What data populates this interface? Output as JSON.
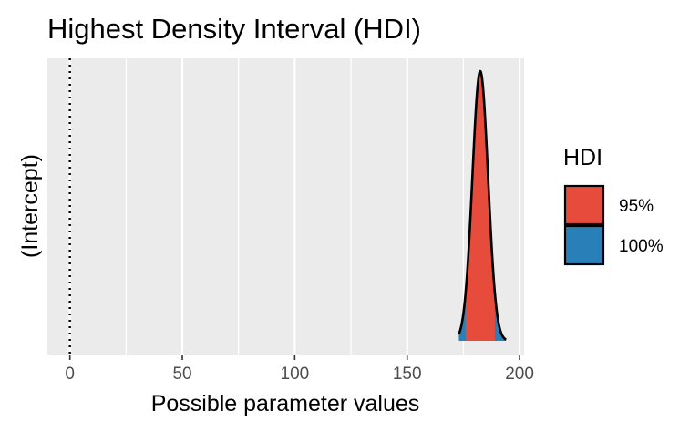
{
  "chart_data": {
    "type": "area",
    "title": "Highest Density Interval (HDI)",
    "xlabel": "Possible parameter values",
    "ylabel": "(Intercept)",
    "xlim": [
      -10,
      202
    ],
    "x_ticks": [
      0,
      50,
      100,
      150,
      200
    ],
    "x_tick_labels": [
      "0",
      "50",
      "100",
      "150",
      "200"
    ],
    "reference_line_x": 0,
    "grid": true,
    "density": {
      "parameter": "(Intercept)",
      "mean": 182.5,
      "sd": 3.5,
      "support": [
        173,
        194
      ]
    },
    "series": [
      {
        "name": "95%",
        "interval": [
          176,
          189
        ],
        "color": "#E64B3C"
      },
      {
        "name": "100%",
        "interval": [
          173,
          194
        ],
        "color": "#2980B9"
      }
    ],
    "legend": {
      "title": "HDI",
      "placement": "right",
      "items": [
        {
          "label": "95%",
          "color": "#E64B3C"
        },
        {
          "label": "100%",
          "color": "#2980B9"
        }
      ]
    },
    "panel_background": "#EBEBEB",
    "grid_color": "#FFFFFF"
  }
}
